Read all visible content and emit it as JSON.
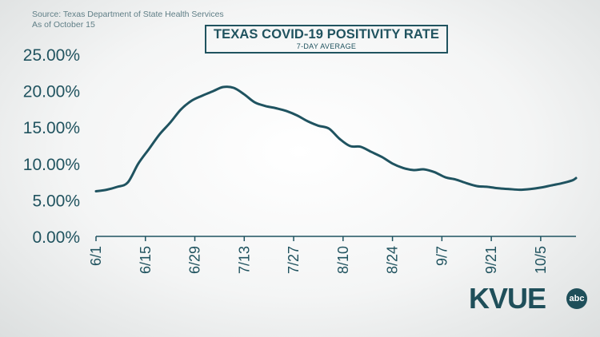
{
  "source_line1": "Source: Texas Department of State Health Services",
  "source_line2": "As of October 15",
  "title": "TEXAS COVID-19 POSITIVITY RATE",
  "subtitle": "7-DAY AVERAGE",
  "logo": {
    "text": "KVUE",
    "badge": "abc"
  },
  "colors": {
    "line": "#1f5360",
    "axis": "#1f5360",
    "text": "#20535f"
  },
  "chart_data": {
    "type": "line",
    "title": "TEXAS COVID-19 POSITIVITY RATE",
    "subtitle": "7-DAY AVERAGE",
    "xlabel": "",
    "ylabel": "",
    "y_tick_labels": [
      "0.00%",
      "5.00%",
      "10.00%",
      "15.00%",
      "20.00%",
      "25.00%"
    ],
    "y_ticks": [
      0,
      5,
      10,
      15,
      20,
      25
    ],
    "ylim": [
      0,
      25
    ],
    "x_tick_labels": [
      "6/1",
      "6/15",
      "6/29",
      "7/13",
      "7/27",
      "8/10",
      "8/24",
      "9/7",
      "9/21",
      "10/5"
    ],
    "xlim": [
      "6/1",
      "10/15"
    ],
    "grid": false,
    "legend": "none",
    "series": [
      {
        "x": [
          "6/1",
          "6/4",
          "6/7",
          "6/10",
          "6/13",
          "6/16",
          "6/19",
          "6/22",
          "6/25",
          "6/28",
          "7/1",
          "7/4",
          "7/7",
          "7/10",
          "7/13",
          "7/16",
          "7/19",
          "7/22",
          "7/25",
          "7/28",
          "7/31",
          "8/3",
          "8/6",
          "8/9",
          "8/12",
          "8/15",
          "8/18",
          "8/21",
          "8/24",
          "8/27",
          "8/30",
          "9/2",
          "9/5",
          "9/8",
          "9/11",
          "9/14",
          "9/17",
          "9/20",
          "9/23",
          "9/26",
          "9/29",
          "10/2",
          "10/5",
          "10/8",
          "10/11",
          "10/14",
          "10/15"
        ],
        "values": [
          6.2,
          6.4,
          6.8,
          7.4,
          10.0,
          12.0,
          14.0,
          15.6,
          17.4,
          18.6,
          19.3,
          19.9,
          20.5,
          20.4,
          19.5,
          18.4,
          17.9,
          17.6,
          17.2,
          16.6,
          15.8,
          15.2,
          14.8,
          13.4,
          12.4,
          12.3,
          11.6,
          10.9,
          10.0,
          9.4,
          9.1,
          9.2,
          8.8,
          8.1,
          7.8,
          7.3,
          6.9,
          6.8,
          6.6,
          6.5,
          6.4,
          6.5,
          6.7,
          7.0,
          7.3,
          7.7,
          8.0
        ]
      }
    ]
  }
}
